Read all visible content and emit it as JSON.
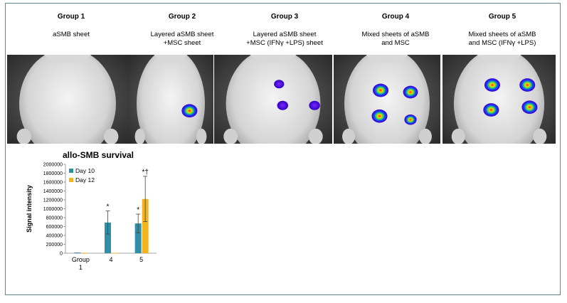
{
  "groups": [
    {
      "title": "Group 1",
      "desc": "aSMB sheet"
    },
    {
      "title": "Group 2",
      "desc": "Layered aSMB sheet\n+MSC sheet"
    },
    {
      "title": "Group 3",
      "desc": "Layered aSMB sheet\n+MSC (IFNγ +LPS) sheet"
    },
    {
      "title": "Group 4",
      "desc": "Mixed sheets of aSMB\nand MSC"
    },
    {
      "title": "Group 5",
      "desc": "Mixed sheets of aSMB\nand MSC (IFNγ +LPS)"
    }
  ],
  "panels": [
    {
      "spots": []
    },
    {
      "spots": [
        {
          "fx": 0.72,
          "fy": 0.63,
          "intensity": 1.0
        }
      ]
    },
    {
      "spots": [
        {
          "fx": 0.55,
          "fy": 0.33,
          "intensity": 0.35
        },
        {
          "fx": 0.58,
          "fy": 0.57,
          "intensity": 0.45
        },
        {
          "fx": 0.85,
          "fy": 0.57,
          "intensity": 0.45
        }
      ]
    },
    {
      "spots": [
        {
          "fx": 0.44,
          "fy": 0.4,
          "intensity": 1.0
        },
        {
          "fx": 0.72,
          "fy": 0.42,
          "intensity": 0.9
        },
        {
          "fx": 0.43,
          "fy": 0.69,
          "intensity": 1.0
        },
        {
          "fx": 0.72,
          "fy": 0.73,
          "intensity": 0.6
        }
      ]
    },
    {
      "spots": [
        {
          "fx": 0.44,
          "fy": 0.34,
          "intensity": 1.0
        },
        {
          "fx": 0.75,
          "fy": 0.34,
          "intensity": 1.0
        },
        {
          "fx": 0.43,
          "fy": 0.62,
          "intensity": 1.0
        },
        {
          "fx": 0.77,
          "fy": 0.59,
          "intensity": 1.0
        }
      ]
    }
  ],
  "chart_data": {
    "type": "bar",
    "title": "allo-SMB survival",
    "ylabel": "Signal intensity",
    "xlabel": "",
    "categories": [
      "Group\n1",
      "4",
      "5"
    ],
    "ylim": [
      0,
      2000000
    ],
    "yticks": [
      "0",
      "200000",
      "400000",
      "600000",
      "800000",
      "1000000",
      "1200000",
      "1400000",
      "1600000",
      "1800000",
      "2000000"
    ],
    "series": [
      {
        "name": "Day 10",
        "color": "#2f8fa6",
        "values": [
          15000,
          690000,
          670000
        ],
        "errors": [
          5000,
          260000,
          210000
        ]
      },
      {
        "name": "Day 12",
        "color": "#f5b31c",
        "values": [
          10000,
          8000,
          1220000
        ],
        "errors": [
          3000,
          3000,
          510000
        ]
      }
    ],
    "annotations": [
      {
        "category": 1,
        "series": 0,
        "text": "*"
      },
      {
        "category": 2,
        "series": 0,
        "text": "*"
      },
      {
        "category": 2,
        "series": 1,
        "text": "*†"
      }
    ],
    "legend": "top-left"
  }
}
